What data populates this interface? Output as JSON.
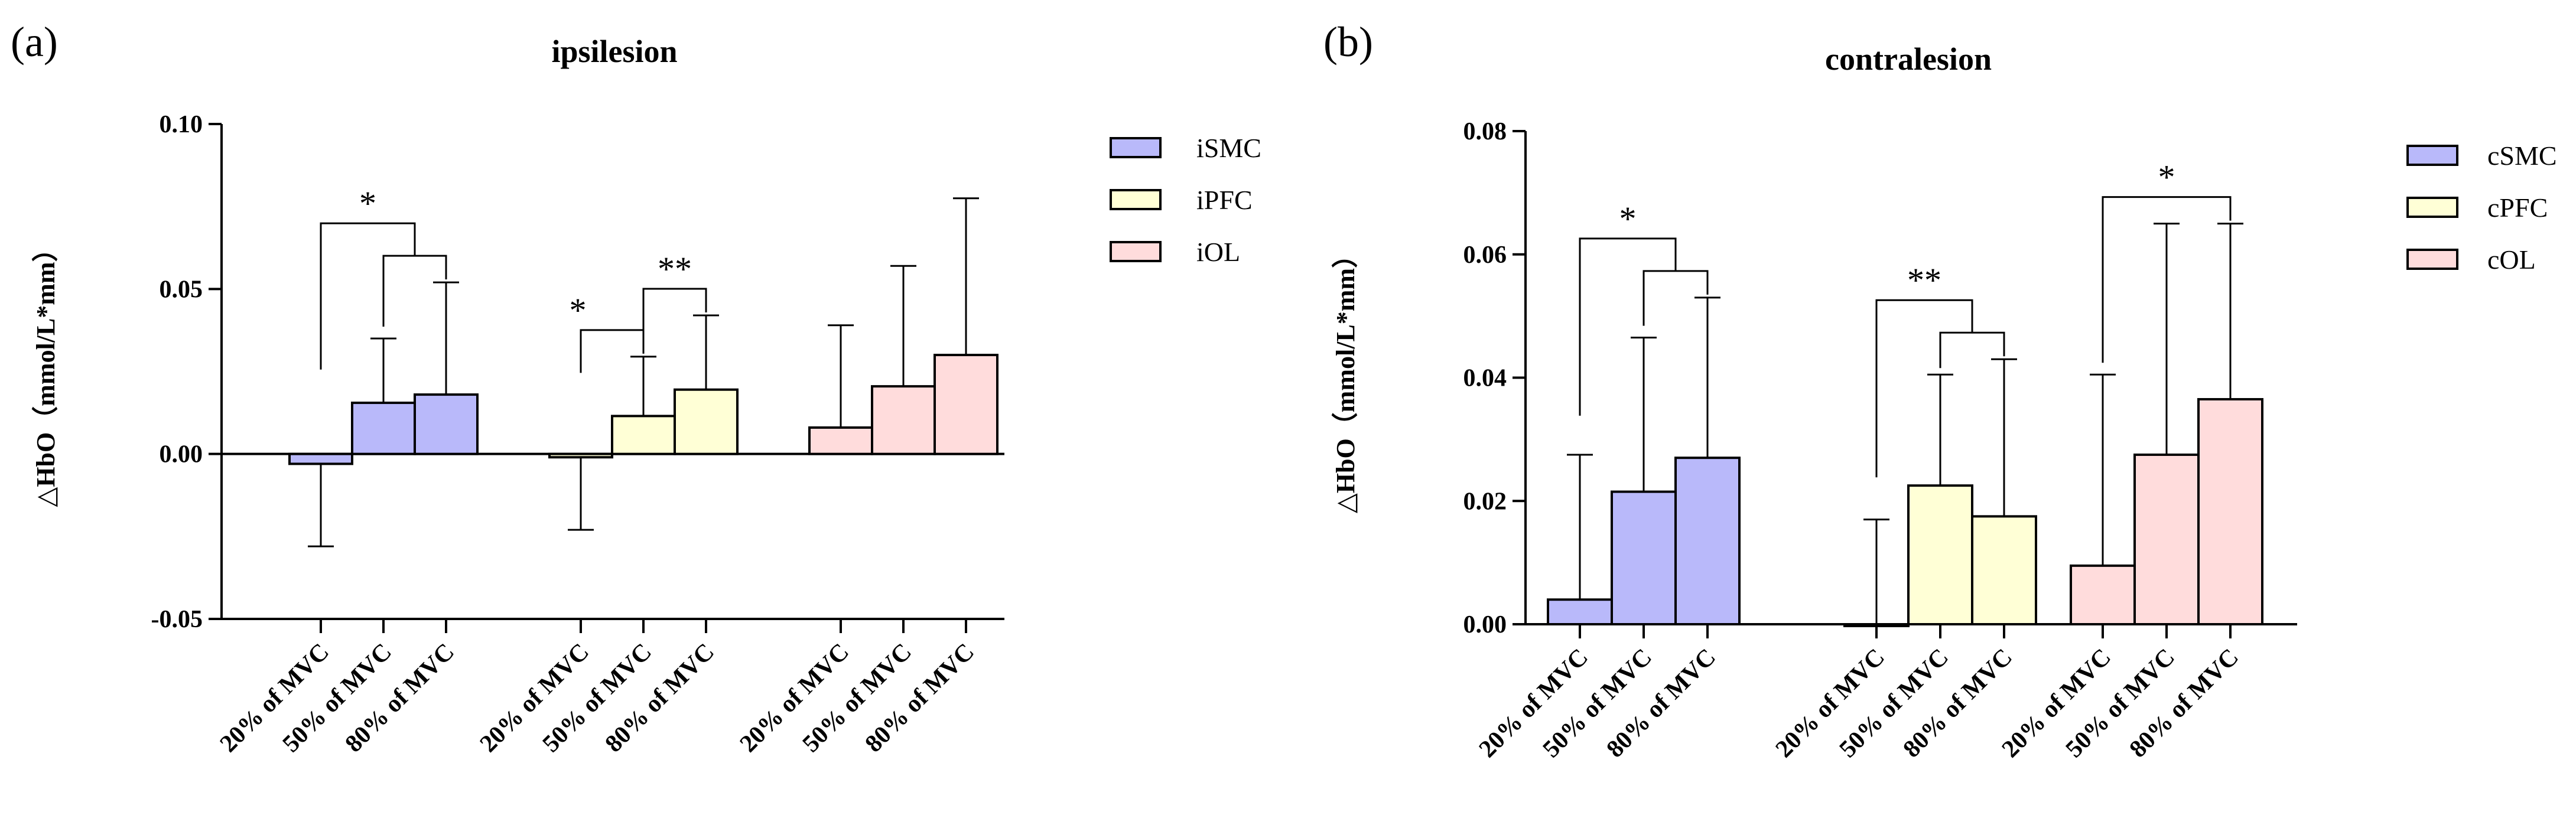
{
  "chart_data": [
    {
      "type": "bar",
      "panel_label": "(a)",
      "title": "ipsilesion",
      "ylabel": "△HbO（mmol/L*mm）",
      "xlabel": "",
      "ylim": [
        -0.05,
        0.1
      ],
      "yticks": [
        "-0.05",
        "0.00",
        "0.05",
        "0.10"
      ],
      "categories": [
        "20% of MVC",
        "50% of MVC",
        "80% of MVC"
      ],
      "series": [
        {
          "name": "iSMC",
          "color": "#B9B9FA",
          "values": [
            -0.003,
            0.0155,
            0.018
          ],
          "error": [
            0.025,
            0.0195,
            0.034
          ]
        },
        {
          "name": "iPFC",
          "color": "#FFFFD6",
          "values": [
            -0.001,
            0.0115,
            0.0195
          ],
          "error": [
            0.022,
            0.018,
            0.0225
          ]
        },
        {
          "name": "iOL",
          "color": "#FFDCDC",
          "values": [
            0.008,
            0.0205,
            0.03
          ],
          "error": [
            0.031,
            0.0365,
            0.0475
          ]
        }
      ],
      "significance": [
        {
          "series": 0,
          "brackets": [
            {
              "from": 0,
              "to": 1.5,
              "label": "*"
            },
            {
              "from": 1,
              "to": 2,
              "label": ""
            }
          ]
        },
        {
          "series": 1,
          "brackets": [
            {
              "from": 0,
              "to": 1,
              "label": "*"
            },
            {
              "from": 1,
              "to": 2,
              "label": "**"
            }
          ]
        }
      ],
      "legend_position": "right"
    },
    {
      "type": "bar",
      "panel_label": "(b)",
      "title": "contralesion",
      "ylabel": "△HbO（mmol/L*mm）",
      "xlabel": "",
      "ylim": [
        0.0,
        0.08
      ],
      "yticks": [
        "0.00",
        "0.02",
        "0.04",
        "0.06",
        "0.08"
      ],
      "categories": [
        "20% of MVC",
        "50% of MVC",
        "80% of MVC"
      ],
      "series": [
        {
          "name": "cSMC",
          "color": "#B9B9FA",
          "values": [
            0.004,
            0.0215,
            0.027
          ],
          "error": [
            0.0235,
            0.025,
            0.026
          ]
        },
        {
          "name": "cPFC",
          "color": "#FFFFD6",
          "values": [
            0.0,
            0.0225,
            0.0175
          ],
          "error": [
            0.017,
            0.018,
            0.0255
          ]
        },
        {
          "name": "cOL",
          "color": "#FFDCDC",
          "values": [
            0.0095,
            0.0275,
            0.0365
          ],
          "error": [
            0.031,
            0.0375,
            0.0285
          ]
        }
      ],
      "significance": [
        {
          "series": 0,
          "brackets": [
            {
              "from": 0,
              "to": 1.5,
              "label": "*"
            },
            {
              "from": 1,
              "to": 2,
              "label": ""
            }
          ]
        },
        {
          "series": 1,
          "brackets": [
            {
              "from": 0,
              "to": 1.5,
              "label": "**"
            },
            {
              "from": 1,
              "to": 2,
              "label": ""
            }
          ]
        },
        {
          "series": 2,
          "brackets": [
            {
              "from": 0,
              "to": 2,
              "label": "*"
            }
          ]
        }
      ],
      "legend_position": "right"
    }
  ]
}
